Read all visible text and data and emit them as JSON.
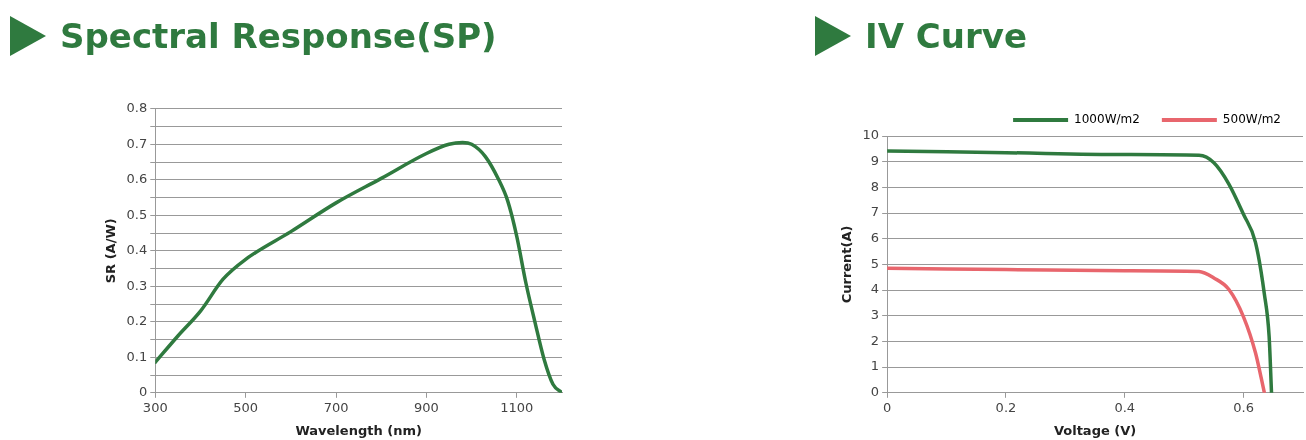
{
  "chart_data": [
    {
      "type": "line",
      "title": "Spectral Response(SP)",
      "xlabel": "Wavelength (nm)",
      "ylabel": "SR (A/W)",
      "xlim": [
        300,
        1200
      ],
      "xticks": [
        300,
        500,
        700,
        900,
        1100
      ],
      "ylim": [
        0,
        0.8
      ],
      "yticks": [
        0,
        {
          "value": 0.05,
          "label": null
        },
        0.1,
        {
          "value": 0.15,
          "label": null
        },
        0.2,
        {
          "value": 0.25,
          "label": null
        },
        0.3,
        {
          "value": 0.35,
          "label": null
        },
        0.4,
        {
          "value": 0.45,
          "label": null
        },
        0.5,
        {
          "value": 0.55,
          "label": null
        },
        0.6,
        {
          "value": 0.65,
          "label": null
        },
        0.7,
        {
          "value": 0.75,
          "label": null
        },
        0.8
      ],
      "grid": "y",
      "legend": false,
      "marker": "none",
      "line_style": "solid",
      "series": [
        {
          "color": "#2f7a3f",
          "x": [
            300,
            350,
            400,
            450,
            500,
            600,
            700,
            800,
            900,
            950,
            980,
            1000,
            1030,
            1060,
            1080,
            1100,
            1120,
            1140,
            1160,
            1180,
            1200
          ],
          "values": [
            0.086,
            0.16,
            0.23,
            0.32,
            0.376,
            0.454,
            0.535,
            0.604,
            0.674,
            0.7,
            0.705,
            0.7,
            0.666,
            0.6,
            0.54,
            0.44,
            0.31,
            0.2,
            0.096,
            0.024,
            0
          ]
        }
      ]
    },
    {
      "type": "line",
      "title": "IV Curve",
      "xlabel": "Voltage (V)",
      "ylabel": "Current(A)",
      "xlim": [
        0,
        0.7
      ],
      "xticks": [
        0,
        0.2,
        0.4,
        0.6
      ],
      "ylim": [
        0,
        10
      ],
      "yticks": [
        0,
        1,
        2,
        3,
        4,
        5,
        6,
        7,
        8,
        9,
        10
      ],
      "grid": "y",
      "legend": "top right",
      "marker": "none",
      "line_style": "solid",
      "series": [
        {
          "name": "1000W/m2",
          "color": "#2f7a3f",
          "x": [
            0,
            0.2,
            0.4,
            0.525,
            0.55,
            0.575,
            0.6,
            0.62,
            0.635,
            0.643,
            0.647
          ],
          "values": [
            9.42,
            9.35,
            9.28,
            9.25,
            8.96,
            8.14,
            6.94,
            5.86,
            3.84,
            2.19,
            0
          ]
        },
        {
          "name": "500W/m2",
          "color": "#e8666d",
          "x": [
            0,
            0.2,
            0.4,
            0.525,
            0.55,
            0.575,
            0.6,
            0.62,
            0.63,
            0.635
          ],
          "values": [
            4.85,
            4.8,
            4.75,
            4.72,
            4.47,
            4.03,
            2.95,
            1.56,
            0.54,
            0
          ]
        }
      ]
    }
  ]
}
